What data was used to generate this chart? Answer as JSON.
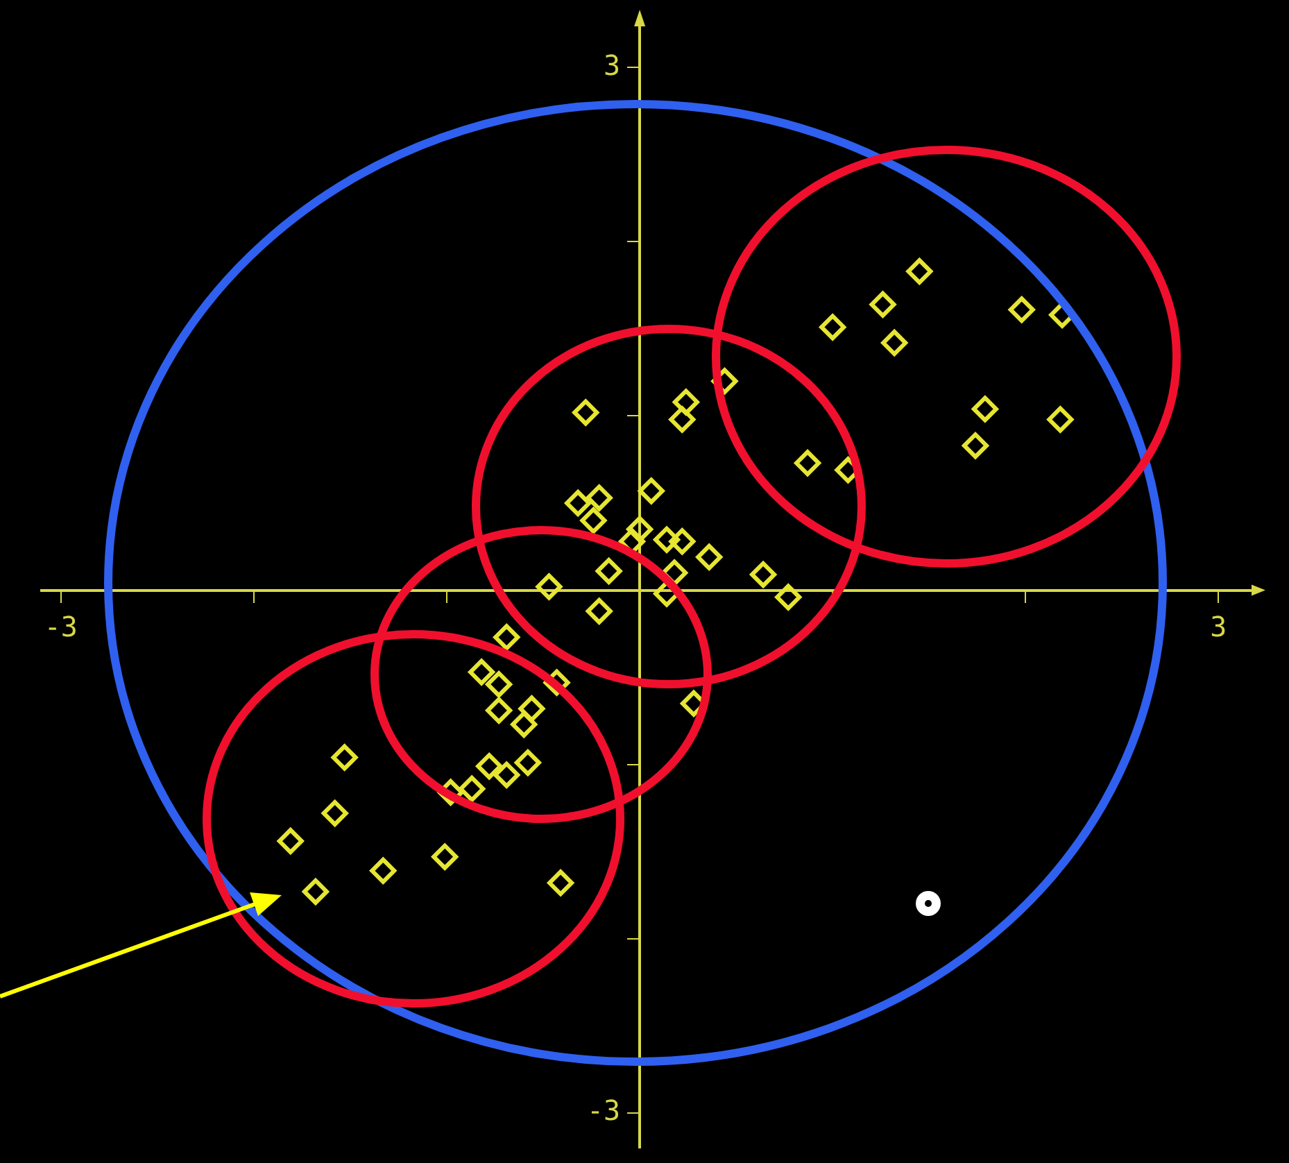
{
  "chart_data": {
    "type": "scatter",
    "marker": "diamond",
    "grid": false,
    "legend": false,
    "xlim": [
      -3.1,
      3.2
    ],
    "ylim": [
      -3.2,
      3.3
    ],
    "xticks": [
      -3,
      {
        "value": -2,
        "label": null
      },
      {
        "value": -1,
        "label": null
      },
      {
        "value": 0,
        "label": null
      },
      {
        "value": 1,
        "label": null
      },
      {
        "value": 2,
        "label": null
      },
      3
    ],
    "yticks": [
      -3,
      {
        "value": -2,
        "label": null
      },
      {
        "value": -1,
        "label": null
      },
      {
        "value": 0,
        "label": null
      },
      {
        "value": 1,
        "label": null
      },
      {
        "value": 2,
        "label": null
      },
      3
    ],
    "series": [
      {
        "color": "#e6e632",
        "x": [
          1.45,
          1.26,
          1.0,
          1.32,
          1.98,
          2.19,
          1.79,
          1.74,
          2.18,
          0.87,
          1.08,
          0.44,
          -0.28,
          0.24,
          0.22,
          0.06,
          -0.32,
          -0.21,
          -0.24,
          0.0,
          -0.04,
          0.14,
          0.22,
          0.36,
          0.18,
          -0.16,
          -0.47,
          0.64,
          0.77,
          -0.21,
          0.14,
          0.28,
          -0.69,
          -0.43,
          -0.82,
          -0.73,
          -0.73,
          -0.56,
          -0.6,
          -0.78,
          -0.69,
          -0.58,
          -0.87,
          -0.98,
          -1.53,
          -1.58,
          -1.81,
          -1.68,
          -1.33,
          -1.01,
          -0.41
        ],
        "values": [
          1.83,
          1.64,
          1.51,
          1.42,
          1.61,
          1.58,
          1.04,
          0.83,
          0.98,
          0.73,
          0.69,
          1.2,
          1.02,
          1.08,
          0.98,
          0.57,
          0.5,
          0.53,
          0.4,
          0.35,
          0.28,
          0.29,
          0.28,
          0.19,
          0.1,
          0.11,
          0.02,
          0.09,
          -0.04,
          -0.12,
          -0.02,
          -0.65,
          -0.27,
          -0.53,
          -0.47,
          -0.54,
          -0.69,
          -0.68,
          -0.77,
          -1.01,
          -1.06,
          -0.99,
          -1.14,
          -1.16,
          -0.96,
          -1.28,
          -1.44,
          -1.73,
          -1.61,
          -1.53,
          -1.68
        ]
      }
    ]
  }
}
